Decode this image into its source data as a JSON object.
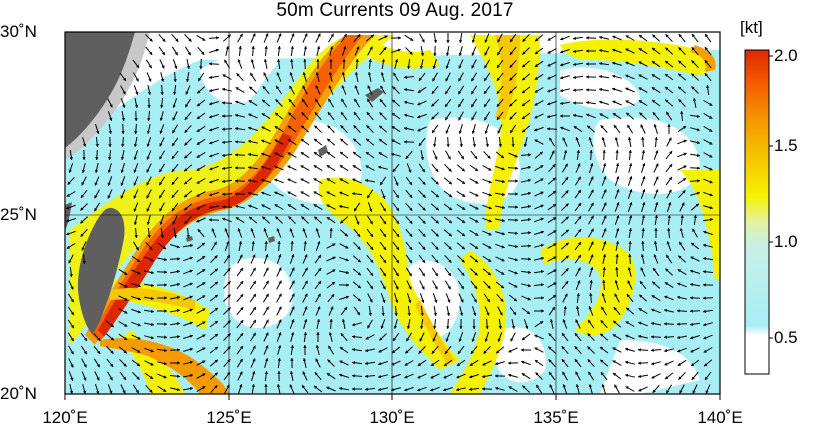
{
  "title": "50m Currents  09 Aug. 2017",
  "colorbar": {
    "unit": "[kt]",
    "ticks": [
      "2.0",
      "1.5",
      "1.0",
      "0.5"
    ],
    "colors": [
      "#ffffff",
      "#a8eef5",
      "#d8f2c8",
      "#f5f200",
      "#f5c800",
      "#f59a00",
      "#f55a00",
      "#dc2800"
    ]
  },
  "axes": {
    "lat_labels": [
      "30˚N",
      "25˚N",
      "20˚N"
    ],
    "lon_labels": [
      "120˚E",
      "125˚E",
      "130˚E",
      "135˚E",
      "140˚E"
    ],
    "lat_range": [
      20,
      30
    ],
    "lon_range": [
      120,
      140
    ]
  },
  "colors": {
    "land": "#5f5f5f",
    "land_light": "#c8c8c8",
    "arrow": "#000000",
    "grid": "#000000"
  }
}
